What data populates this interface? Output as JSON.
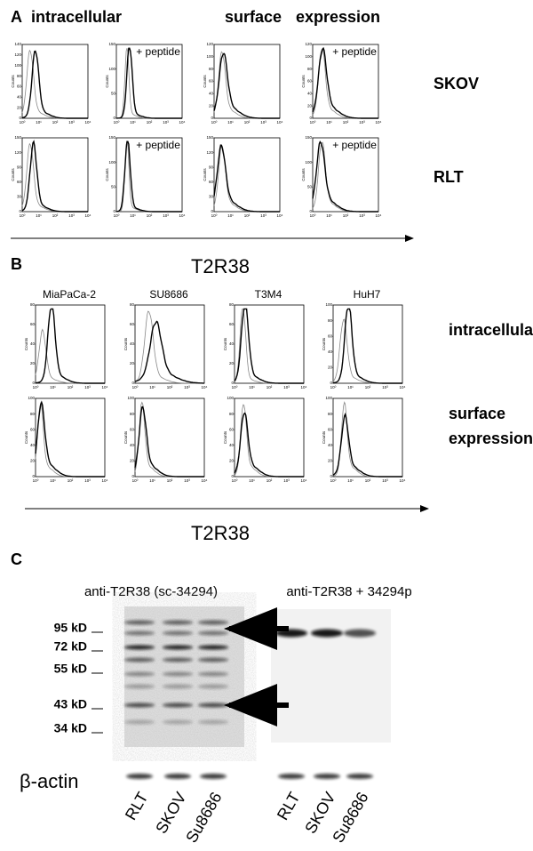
{
  "panel_a": {
    "label": "A",
    "headers": [
      "intracellular",
      "surface",
      "expression"
    ],
    "annotation": "+ peptide",
    "rows": [
      "SKOV",
      "RLT"
    ],
    "y_axis_label": "Counts",
    "yticks": [
      [
        0,
        20,
        40,
        60,
        80,
        100,
        120,
        140
      ],
      [
        0,
        50,
        100,
        150
      ],
      [
        0,
        20,
        40,
        60,
        80,
        100,
        120
      ],
      [
        0,
        20,
        40,
        60,
        80,
        100,
        120
      ],
      [
        0,
        30,
        60,
        90,
        120,
        150
      ],
      [
        0,
        50,
        100,
        150
      ],
      [
        0,
        30,
        60,
        90,
        120,
        150
      ],
      [
        0,
        50,
        100,
        150
      ]
    ],
    "xticks": [
      "10⁰",
      "10¹",
      "10²",
      "10³",
      "10⁴"
    ]
  },
  "panel_b": {
    "label": "B",
    "title": "T2R38",
    "columns": [
      "MiaPaCa-2",
      "SU8686",
      "T3M4",
      "HuH7"
    ],
    "rows": [
      "intracellular",
      "surface",
      "expression"
    ],
    "y_axis_label": "Counts",
    "yticks": [
      [
        0,
        20,
        40,
        60,
        80
      ],
      [
        0,
        20,
        40,
        60,
        80
      ],
      [
        0,
        20,
        40,
        60,
        80
      ],
      [
        0,
        20,
        40,
        60,
        80,
        100
      ],
      [
        0,
        20,
        40,
        60,
        80,
        100
      ],
      [
        0,
        20,
        40,
        60,
        80,
        100
      ],
      [
        0,
        20,
        40,
        60,
        80,
        100
      ],
      [
        0,
        20,
        40,
        60,
        80,
        100
      ]
    ],
    "xticks": [
      "10⁰",
      "10¹",
      "10²",
      "10³",
      "10⁴"
    ],
    "axis_title": "T2R38"
  },
  "panel_c": {
    "label": "C",
    "blot_titles": [
      "anti-T2R38 (sc-34294)",
      "anti-T2R38 + 34294p"
    ],
    "markers": [
      "95 kD",
      "72 kD",
      "55 kD",
      "43 kD",
      "34 kD"
    ],
    "loading_control": "β-actin",
    "lanes": [
      "RLT",
      "SKOV",
      "Su8686"
    ]
  }
}
